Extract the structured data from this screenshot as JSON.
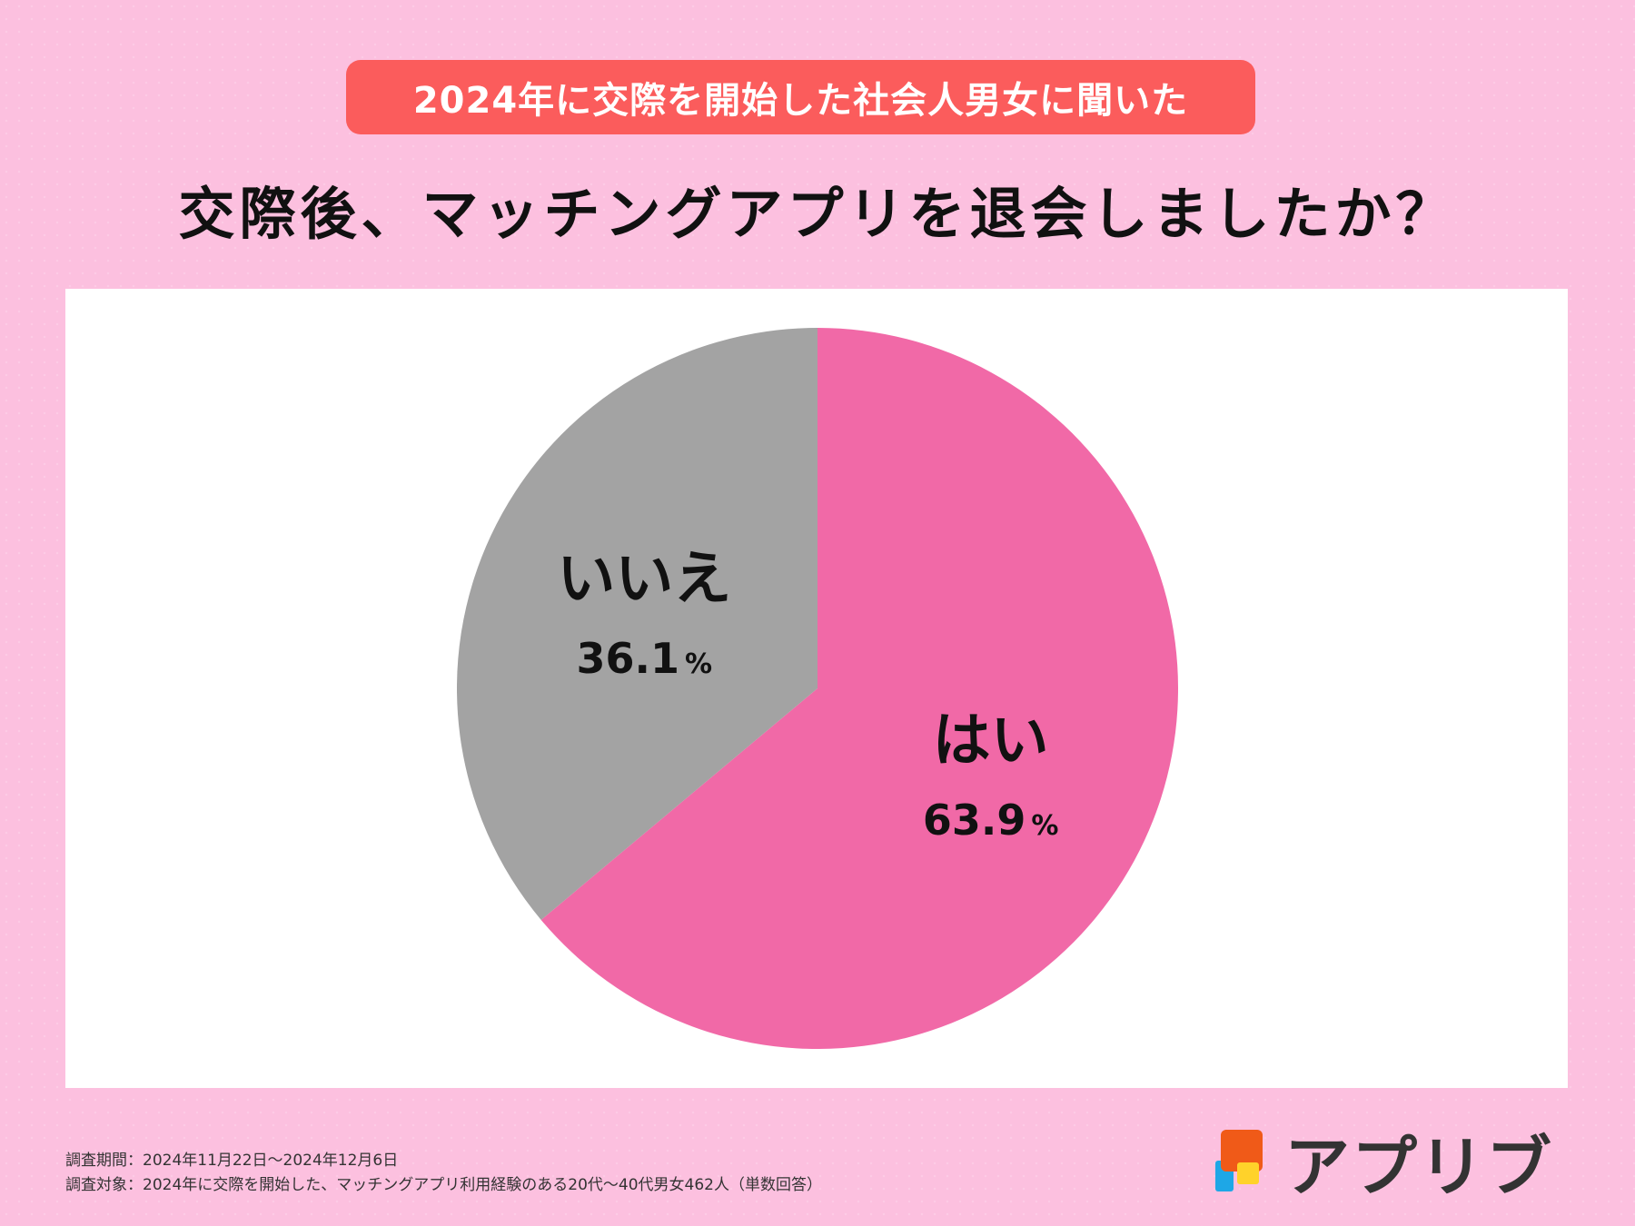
{
  "header": {
    "badge_text": "2024年に交際を開始した社会人男女に聞いた",
    "title": "交際後、マッチングアプリを退会しましたか？"
  },
  "colors": {
    "background": "#FCC0DF",
    "badge": "#FB5C5C",
    "yes": "#F169A7",
    "no": "#A3A3A3",
    "text": "#111111"
  },
  "chart_data": {
    "type": "pie",
    "title": "交際後、マッチングアプリを退会しましたか？",
    "categories": [
      "はい",
      "いいえ"
    ],
    "values": [
      63.9,
      36.1
    ],
    "value_labels": [
      "63.9",
      "36.1"
    ],
    "unit": "%",
    "start": "12 o'clock",
    "direction": "clockwise"
  },
  "footer": {
    "survey_period": "調査期間：2024年11月22日〜2024年12月6日",
    "survey_target": "調査対象：2024年に交際を開始した、マッチングアプリ利用経験のある20代〜40代男女462人（単数回答）"
  },
  "logo": {
    "text": "アプリブ",
    "icon": "appliv-logo-icon"
  }
}
